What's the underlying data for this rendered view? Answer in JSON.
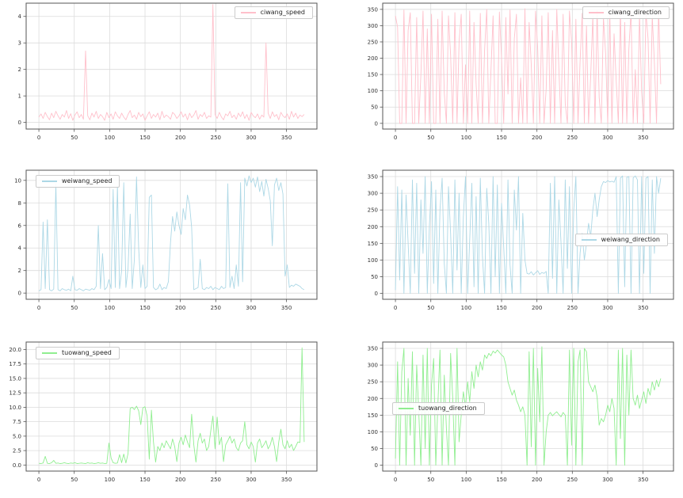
{
  "figure": {
    "background": "#ffffff",
    "grid_color": "#dcdcdc",
    "spine_color": "#555555",
    "tick_label_color": "#333333"
  },
  "chart_data": [
    {
      "type": "line",
      "label": "ciwang_speed",
      "color": "#ffc0cb",
      "legend_position": "upper-right",
      "xlim": [
        -18,
        393
      ],
      "ylim": [
        -0.25,
        4.5
      ],
      "x_ticks": [
        0,
        50,
        100,
        150,
        200,
        250,
        300,
        350
      ],
      "y_ticks": [
        "0",
        "1",
        "2",
        "3",
        "4"
      ],
      "y_tick_values": [
        0,
        1,
        2,
        3,
        4
      ],
      "x_start": 0,
      "x_step": 3,
      "values": [
        0.2,
        0.32,
        0.15,
        0.38,
        0.22,
        0.1,
        0.35,
        0.18,
        0.42,
        0.25,
        0.12,
        0.3,
        0.2,
        0.45,
        0.15,
        0.33,
        0.08,
        0.28,
        0.4,
        0.18,
        0.3,
        0.12,
        2.7,
        0.25,
        0.1,
        0.35,
        0.2,
        0.42,
        0.15,
        0.3,
        0.22,
        0.08,
        0.38,
        0.18,
        0.32,
        0.12,
        0.4,
        0.25,
        0.15,
        0.35,
        0.2,
        0.1,
        0.3,
        0.45,
        0.18,
        0.28,
        0.12,
        0.38,
        0.22,
        0.32,
        0.08,
        0.25,
        0.4,
        0.15,
        0.3,
        0.2,
        0.35,
        0.1,
        0.42,
        0.18,
        0.28,
        0.22,
        0.12,
        0.38,
        0.3,
        0.15,
        0.25,
        0.4,
        0.2,
        0.32,
        0.1,
        0.35,
        0.18,
        0.28,
        0.45,
        0.12,
        0.3,
        0.22,
        0.38,
        0.15,
        0.25,
        0.2,
        4.45,
        0.3,
        0.15,
        0.38,
        0.2,
        0.1,
        0.32,
        0.25,
        0.42,
        0.18,
        0.28,
        0.12,
        0.35,
        0.22,
        0.4,
        0.15,
        0.3,
        0.08,
        0.38,
        0.25,
        0.18,
        0.32,
        0.12,
        0.28,
        0.2,
        3.0,
        0.35,
        0.15,
        0.4,
        0.22,
        0.3,
        0.1,
        0.38,
        0.25,
        0.18,
        0.32,
        0.12,
        0.42,
        0.2,
        0.35,
        0.15,
        0.28,
        0.22,
        0.3
      ]
    },
    {
      "type": "line",
      "label": "ciwang_direction",
      "color": "#ffc0cb",
      "legend_position": "upper-right",
      "xlim": [
        -18,
        393
      ],
      "ylim": [
        -17.5,
        369
      ],
      "x_ticks": [
        0,
        50,
        100,
        150,
        200,
        250,
        300,
        350
      ],
      "y_ticks": [
        "0",
        "50",
        "100",
        "150",
        "200",
        "250",
        "300",
        "350"
      ],
      "y_tick_values": [
        0,
        50,
        100,
        150,
        200,
        250,
        300,
        350
      ],
      "x_start": 0,
      "x_step": 3,
      "values": [
        330,
        295,
        0,
        0,
        348,
        0,
        285,
        340,
        0,
        0,
        325,
        0,
        150,
        345,
        0,
        290,
        0,
        335,
        0,
        0,
        320,
        0,
        345,
        95,
        0,
        330,
        210,
        0,
        340,
        0,
        250,
        335,
        0,
        180,
        0,
        345,
        0,
        310,
        120,
        0,
        338,
        0,
        225,
        350,
        0,
        160,
        330,
        0,
        0,
        342,
        200,
        0,
        325,
        90,
        348,
        0,
        260,
        335,
        0,
        140,
        0,
        352,
        0,
        310,
        180,
        0,
        345,
        230,
        0,
        330,
        0,
        105,
        340,
        0,
        285,
        0,
        350,
        170,
        0,
        335,
        60,
        0,
        345,
        250,
        0,
        320,
        0,
        190,
        338,
        0,
        300,
        0,
        145,
        330,
        0,
        348,
        80,
        0,
        325,
        215,
        0,
        340,
        0,
        275,
        130,
        0,
        350,
        0,
        310,
        0,
        230,
        345,
        0,
        165,
        0,
        335,
        95,
        0,
        342,
        260,
        0,
        330,
        185,
        0,
        348,
        120
      ]
    },
    {
      "type": "line",
      "label": "weiwang_speed",
      "color": "#add8e6",
      "legend_position": "upper-left",
      "xlim": [
        -18,
        393
      ],
      "ylim": [
        -0.55,
        10.9
      ],
      "x_ticks": [
        0,
        50,
        100,
        150,
        200,
        250,
        300,
        350
      ],
      "y_ticks": [
        "0",
        "2",
        "4",
        "6",
        "8",
        "10"
      ],
      "y_tick_values": [
        0,
        2,
        4,
        6,
        8,
        10
      ],
      "x_start": 0,
      "x_step": 3,
      "values": [
        0.2,
        0.3,
        6.3,
        0.4,
        6.5,
        0.3,
        0.2,
        0.35,
        9.7,
        0.3,
        0.2,
        0.4,
        0.3,
        0.25,
        0.35,
        0.2,
        1.5,
        0.3,
        0.25,
        0.4,
        0.3,
        0.2,
        0.35,
        0.3,
        0.25,
        0.4,
        0.3,
        0.6,
        6.0,
        0.4,
        3.5,
        0.3,
        0.5,
        1.2,
        0.4,
        9.2,
        0.5,
        9.5,
        0.4,
        2.0,
        9.8,
        0.5,
        2.2,
        7.0,
        0.4,
        3.0,
        10.3,
        4.0,
        0.5,
        2.5,
        0.4,
        0.6,
        8.5,
        8.7,
        0.5,
        0.3,
        0.4,
        0.8,
        0.3,
        0.5,
        0.4,
        1.0,
        4.5,
        6.8,
        5.5,
        7.2,
        6.0,
        5.2,
        7.5,
        6.5,
        8.7,
        7.8,
        5.8,
        0.3,
        0.4,
        0.5,
        3.0,
        0.4,
        0.3,
        0.5,
        0.4,
        0.6,
        0.3,
        0.5,
        0.4,
        0.3,
        0.6,
        0.4,
        0.5,
        9.7,
        0.5,
        1.5,
        0.4,
        2.5,
        0.6,
        9.8,
        1.0,
        10.2,
        9.5,
        10.4,
        9.8,
        10.2,
        9.4,
        10.3,
        9.0,
        9.9,
        8.6,
        10.1,
        9.3,
        8.2,
        4.2,
        9.6,
        10.2,
        9.1,
        9.8,
        8.8,
        1.5,
        2.5,
        0.5,
        0.7,
        0.6,
        0.8,
        0.7,
        0.6,
        0.4,
        0.3
      ]
    },
    {
      "type": "line",
      "label": "weiwang_direction",
      "color": "#add8e6",
      "legend_position": "center-right",
      "xlim": [
        -18,
        393
      ],
      "ylim": [
        -17.5,
        369
      ],
      "x_ticks": [
        0,
        50,
        100,
        150,
        200,
        250,
        300,
        350
      ],
      "y_ticks": [
        "0",
        "50",
        "100",
        "150",
        "200",
        "250",
        "300",
        "350"
      ],
      "y_tick_values": [
        0,
        50,
        100,
        150,
        200,
        250,
        300,
        350
      ],
      "x_start": 0,
      "x_step": 3,
      "values": [
        10,
        320,
        40,
        310,
        0,
        295,
        150,
        0,
        340,
        60,
        330,
        0,
        280,
        120,
        350,
        0,
        200,
        335,
        30,
        310,
        0,
        250,
        345,
        90,
        0,
        320,
        180,
        0,
        340,
        70,
        300,
        0,
        230,
        350,
        0,
        160,
        330,
        20,
        290,
        0,
        345,
        110,
        0,
        315,
        210,
        0,
        350,
        50,
        325,
        0,
        270,
        140,
        0,
        340,
        85,
        0,
        310,
        190,
        350,
        0,
        240,
        100,
        60,
        58,
        65,
        55,
        62,
        68,
        57,
        63,
        60,
        66,
        0,
        330,
        45,
        350,
        0,
        280,
        155,
        0,
        340,
        75,
        320,
        0,
        250,
        350,
        0,
        120,
        180,
        100,
        150,
        210,
        170,
        250,
        300,
        230,
        280,
        320,
        335,
        332,
        338,
        334,
        336,
        333,
        350,
        0,
        345,
        352,
        20,
        348,
        350,
        0,
        346,
        352,
        340,
        0,
        350,
        60,
        345,
        350,
        0,
        340,
        120,
        350,
        300,
        345
      ]
    },
    {
      "type": "line",
      "label": "tuowang_speed",
      "color": "#90ee90",
      "legend_position": "upper-left",
      "xlim": [
        -18,
        393
      ],
      "ylim": [
        -1.05,
        21.3
      ],
      "x_ticks": [
        0,
        50,
        100,
        150,
        200,
        250,
        300,
        350
      ],
      "y_ticks": [
        "0.0",
        "2.5",
        "5.0",
        "7.5",
        "10.0",
        "12.5",
        "15.0",
        "17.5",
        "20.0"
      ],
      "y_tick_values": [
        0,
        2.5,
        5,
        7.5,
        10,
        12.5,
        15,
        17.5,
        20
      ],
      "x_start": 0,
      "x_step": 3,
      "values": [
        0.3,
        0.25,
        0.35,
        1.5,
        0.3,
        0.25,
        0.4,
        0.8,
        0.3,
        0.35,
        0.25,
        0.3,
        0.4,
        0.3,
        0.25,
        0.35,
        0.3,
        0.4,
        0.25,
        0.3,
        0.35,
        0.3,
        0.25,
        0.4,
        0.3,
        0.35,
        0.25,
        0.3,
        0.4,
        0.3,
        0.35,
        0.25,
        0.3,
        3.8,
        1.2,
        0.4,
        0.3,
        0.35,
        1.8,
        0.4,
        1.9,
        0.35,
        2.0,
        9.8,
        10.0,
        9.6,
        10.2,
        9.4,
        7.0,
        9.9,
        10.1,
        8.5,
        1.0,
        9.5,
        4.0,
        0.5,
        3.2,
        2.5,
        3.8,
        3.0,
        4.2,
        3.5,
        2.8,
        4.5,
        3.2,
        0.6,
        3.8,
        4.8,
        3.5,
        5.2,
        4.0,
        3.0,
        8.8,
        3.5,
        0.5,
        4.2,
        5.5,
        3.8,
        4.5,
        2.5,
        3.2,
        6.0,
        8.5,
        2.8,
        8.3,
        3.5,
        4.8,
        0.6,
        3.5,
        4.2,
        5.0,
        3.8,
        4.5,
        3.0,
        2.5,
        3.8,
        4.2,
        7.5,
        3.5,
        2.8,
        4.0,
        3.2,
        0.5,
        3.8,
        4.5,
        3.0,
        3.5,
        4.2,
        2.8,
        3.5,
        4.8,
        3.2,
        0.6,
        4.0,
        6.2,
        3.5,
        2.8,
        4.2,
        3.0,
        3.6,
        2.5,
        3.2,
        4.0,
        3.9,
        20.3,
        4.0
      ]
    },
    {
      "type": "line",
      "label": "tuowang_direction",
      "color": "#90ee90",
      "legend_position": "center-left",
      "xlim": [
        -18,
        393
      ],
      "ylim": [
        -17.5,
        369
      ],
      "x_ticks": [
        0,
        50,
        100,
        150,
        200,
        250,
        300,
        350
      ],
      "y_ticks": [
        "0",
        "50",
        "100",
        "150",
        "200",
        "250",
        "300",
        "350"
      ],
      "y_tick_values": [
        0,
        50,
        100,
        150,
        200,
        250,
        300,
        350
      ],
      "x_start": 0,
      "x_step": 3,
      "values": [
        20,
        310,
        0,
        280,
        350,
        0,
        260,
        90,
        340,
        0,
        300,
        160,
        0,
        330,
        50,
        350,
        0,
        240,
        320,
        0,
        180,
        345,
        0,
        270,
        110,
        0,
        335,
        200,
        0,
        350,
        70,
        150,
        220,
        175,
        250,
        190,
        280,
        230,
        300,
        265,
        310,
        285,
        330,
        320,
        335,
        328,
        342,
        336,
        345,
        338,
        330,
        325,
        300,
        250,
        230,
        210,
        225,
        195,
        180,
        160,
        175,
        150,
        0,
        340,
        55,
        350,
        0,
        290,
        130,
        355,
        0,
        100,
        150,
        158,
        148,
        155,
        160,
        152,
        145,
        158,
        150,
        0,
        345,
        60,
        350,
        0,
        310,
        345,
        0,
        350,
        340,
        250,
        235,
        220,
        240,
        205,
        120,
        140,
        130,
        150,
        180,
        160,
        200,
        170,
        0,
        345,
        80,
        350,
        0,
        330,
        150,
        345,
        200,
        180,
        210,
        170,
        195,
        220,
        185,
        230,
        210,
        250,
        225,
        255,
        235,
        260
      ]
    }
  ]
}
